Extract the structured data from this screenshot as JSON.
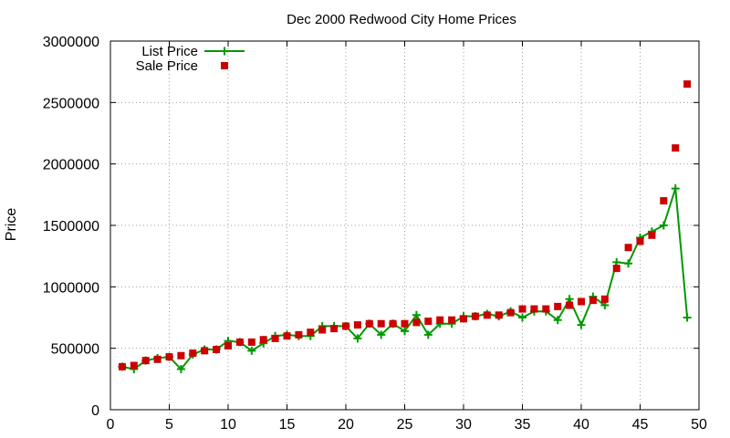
{
  "chart_data": {
    "type": "line",
    "title": "Dec 2000 Redwood City Home Prices",
    "xlabel": "",
    "ylabel": "Price",
    "xlim": [
      0,
      50
    ],
    "ylim": [
      0,
      3000000
    ],
    "x_ticks": [
      "0",
      "5",
      "10",
      "15",
      "20",
      "25",
      "30",
      "35",
      "40",
      "45",
      "50"
    ],
    "y_ticks": [
      "0",
      "500000",
      "1000000",
      "1500000",
      "2000000",
      "2500000",
      "3000000"
    ],
    "grid": true,
    "legend_position": "top-left",
    "series": [
      {
        "name": "List Price",
        "style": "line-with-plus-markers",
        "color": "#009900",
        "x": [
          1,
          2,
          3,
          4,
          5,
          6,
          7,
          8,
          9,
          10,
          11,
          12,
          13,
          14,
          15,
          16,
          17,
          18,
          19,
          20,
          21,
          22,
          23,
          24,
          25,
          26,
          27,
          28,
          29,
          30,
          31,
          32,
          33,
          34,
          35,
          36,
          37,
          38,
          39,
          40,
          41,
          42,
          43,
          44,
          45,
          46,
          47,
          48,
          49
        ],
        "values": [
          350000,
          330000,
          400000,
          420000,
          430000,
          330000,
          450000,
          490000,
          490000,
          560000,
          550000,
          480000,
          540000,
          600000,
          610000,
          600000,
          600000,
          680000,
          680000,
          680000,
          580000,
          700000,
          610000,
          700000,
          640000,
          770000,
          610000,
          700000,
          700000,
          760000,
          760000,
          780000,
          760000,
          800000,
          750000,
          800000,
          800000,
          730000,
          900000,
          690000,
          920000,
          850000,
          1200000,
          1190000,
          1400000,
          1450000,
          1500000,
          1800000,
          750000
        ]
      },
      {
        "name": "Sale Price",
        "style": "square-markers",
        "color": "#cc0000",
        "x": [
          1,
          2,
          3,
          4,
          5,
          6,
          7,
          8,
          9,
          10,
          11,
          12,
          13,
          14,
          15,
          16,
          17,
          18,
          19,
          20,
          21,
          22,
          23,
          24,
          25,
          26,
          27,
          28,
          29,
          30,
          31,
          32,
          33,
          34,
          35,
          36,
          37,
          38,
          39,
          40,
          41,
          42,
          43,
          44,
          45,
          46,
          47,
          48,
          49
        ],
        "values": [
          350000,
          360000,
          400000,
          410000,
          430000,
          440000,
          460000,
          480000,
          490000,
          520000,
          550000,
          550000,
          570000,
          580000,
          600000,
          610000,
          630000,
          650000,
          660000,
          680000,
          690000,
          700000,
          700000,
          700000,
          700000,
          710000,
          720000,
          730000,
          730000,
          740000,
          760000,
          770000,
          770000,
          790000,
          820000,
          820000,
          820000,
          840000,
          850000,
          880000,
          890000,
          900000,
          1150000,
          1320000,
          1370000,
          1420000,
          1700000,
          2130000,
          2650000
        ]
      }
    ]
  }
}
